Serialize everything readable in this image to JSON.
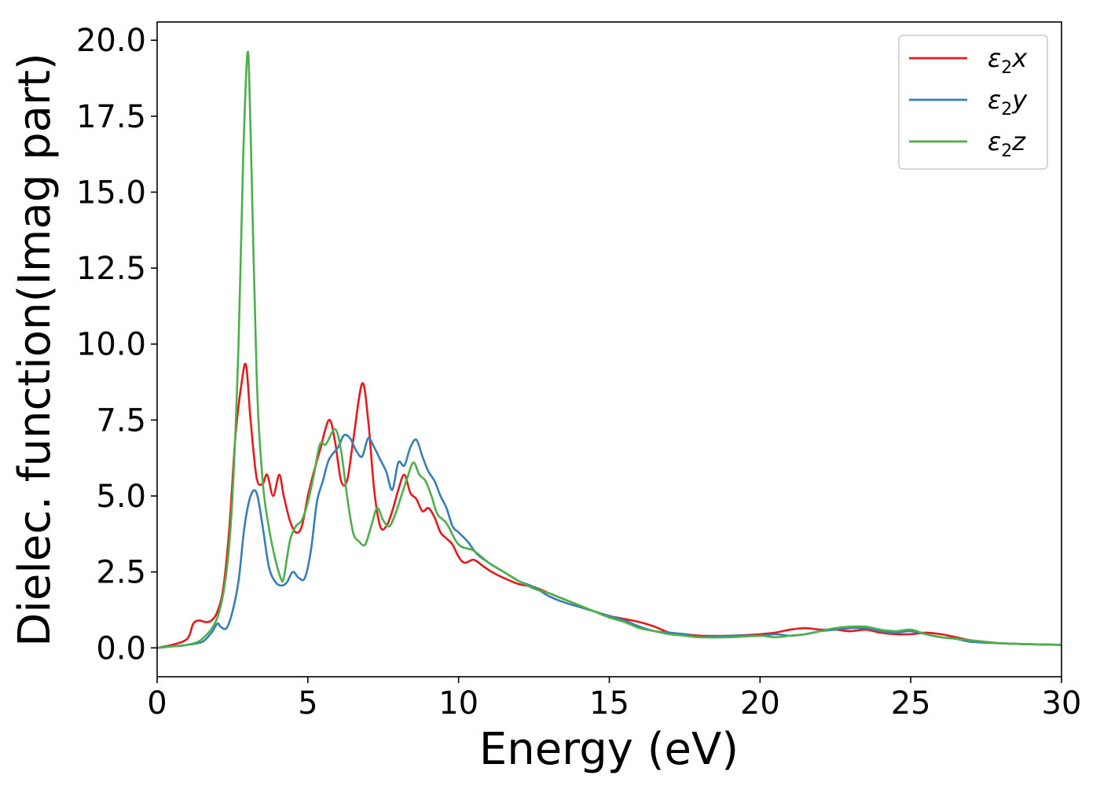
{
  "chart_data": {
    "type": "line",
    "xlabel": "Energy (eV)",
    "ylabel": "Dielec. function(Imag part)",
    "xlim": [
      0,
      30
    ],
    "ylim": [
      -0.95,
      20.6
    ],
    "xticks": [
      0,
      5,
      10,
      15,
      20,
      25,
      30
    ],
    "xtick_labels": [
      "0",
      "5",
      "10",
      "15",
      "20",
      "25",
      "30"
    ],
    "yticks": [
      0,
      2.5,
      5,
      7.5,
      10,
      12.5,
      15,
      17.5,
      20
    ],
    "ytick_labels": [
      "0.0",
      "2.5",
      "5.0",
      "7.5",
      "10.0",
      "12.5",
      "15.0",
      "17.5",
      "20.0"
    ],
    "grid": false,
    "legend_position": "top-right",
    "series": [
      {
        "name": "ε2x",
        "label_base": "ε",
        "label_sub": "2",
        "label_suffix": "x",
        "color": "#e41a1c",
        "x": [
          0,
          0.5,
          1.0,
          1.2,
          1.4,
          1.6,
          1.8,
          2.0,
          2.2,
          2.4,
          2.6,
          2.8,
          2.95,
          3.1,
          3.3,
          3.5,
          3.65,
          3.85,
          4.05,
          4.2,
          4.4,
          4.6,
          4.8,
          5.0,
          5.2,
          5.4,
          5.7,
          5.9,
          6.1,
          6.3,
          6.5,
          6.8,
          7.0,
          7.2,
          7.4,
          7.6,
          7.8,
          8.0,
          8.2,
          8.4,
          8.6,
          8.8,
          9.0,
          9.2,
          9.4,
          9.6,
          9.8,
          10.0,
          10.2,
          10.5,
          10.8,
          11.1,
          11.5,
          12.0,
          12.5,
          13.0,
          13.5,
          14.0,
          14.5,
          15.0,
          15.5,
          16.0,
          16.5,
          17.0,
          17.5,
          18.0,
          19.0,
          20.0,
          20.5,
          21.0,
          21.5,
          22.0,
          22.5,
          23.0,
          23.5,
          24.0,
          24.5,
          25.0,
          25.5,
          26.0,
          26.5,
          27.0,
          28.0,
          29.0,
          30.0
        ],
        "y": [
          0,
          0.1,
          0.3,
          0.8,
          0.9,
          0.85,
          0.9,
          1.2,
          2.0,
          4.0,
          7.0,
          8.7,
          9.3,
          7.5,
          5.6,
          5.4,
          5.7,
          5.0,
          5.7,
          5.0,
          4.2,
          3.8,
          4.0,
          5.0,
          5.8,
          6.5,
          7.5,
          6.8,
          5.5,
          5.5,
          6.8,
          8.7,
          7.5,
          5.2,
          4.0,
          4.0,
          4.5,
          5.2,
          5.7,
          5.1,
          4.9,
          4.5,
          4.6,
          4.3,
          3.8,
          3.6,
          3.4,
          3.0,
          2.8,
          2.9,
          2.7,
          2.5,
          2.3,
          2.1,
          2.0,
          1.8,
          1.6,
          1.4,
          1.2,
          1.05,
          0.95,
          0.85,
          0.7,
          0.5,
          0.45,
          0.4,
          0.4,
          0.45,
          0.5,
          0.6,
          0.65,
          0.6,
          0.6,
          0.55,
          0.6,
          0.5,
          0.45,
          0.45,
          0.5,
          0.45,
          0.35,
          0.25,
          0.15,
          0.12,
          0.1
        ]
      },
      {
        "name": "ε2y",
        "label_base": "ε",
        "label_sub": "2",
        "label_suffix": "y",
        "color": "#377eb8",
        "x": [
          0,
          0.5,
          1.0,
          1.5,
          1.8,
          2.0,
          2.1,
          2.3,
          2.5,
          2.7,
          2.9,
          3.1,
          3.3,
          3.5,
          3.7,
          3.9,
          4.1,
          4.3,
          4.5,
          4.7,
          4.9,
          5.1,
          5.3,
          5.5,
          5.7,
          6.0,
          6.2,
          6.4,
          6.6,
          6.8,
          7.0,
          7.2,
          7.4,
          7.6,
          7.8,
          8.0,
          8.2,
          8.4,
          8.6,
          8.8,
          9.0,
          9.2,
          9.4,
          9.6,
          9.8,
          10.0,
          10.3,
          10.6,
          11.0,
          11.5,
          12.0,
          12.5,
          13.0,
          13.5,
          14.0,
          14.5,
          15.0,
          15.5,
          16.0,
          16.5,
          17.0,
          17.5,
          18.0,
          19.0,
          20.0,
          20.5,
          21.0,
          21.5,
          22.0,
          22.5,
          23.0,
          23.5,
          24.0,
          24.5,
          25.0,
          25.5,
          26.0,
          26.5,
          27.0,
          28.0,
          29.0,
          30.0
        ],
        "y": [
          0,
          0.05,
          0.1,
          0.2,
          0.5,
          0.8,
          0.7,
          0.65,
          1.2,
          2.2,
          4.0,
          5.0,
          5.1,
          4.0,
          2.7,
          2.2,
          2.05,
          2.15,
          2.5,
          2.3,
          2.3,
          3.2,
          4.8,
          5.5,
          6.2,
          6.6,
          7.0,
          6.9,
          6.5,
          6.3,
          6.9,
          6.6,
          6.2,
          5.8,
          5.2,
          6.1,
          6.0,
          6.6,
          6.85,
          6.3,
          5.8,
          5.5,
          5.0,
          4.6,
          4.0,
          3.8,
          3.5,
          3.1,
          2.8,
          2.5,
          2.2,
          2.0,
          1.7,
          1.5,
          1.35,
          1.2,
          1.05,
          0.9,
          0.7,
          0.55,
          0.5,
          0.45,
          0.35,
          0.4,
          0.4,
          0.45,
          0.4,
          0.45,
          0.55,
          0.6,
          0.65,
          0.65,
          0.55,
          0.5,
          0.55,
          0.45,
          0.35,
          0.3,
          0.2,
          0.15,
          0.12,
          0.1
        ]
      },
      {
        "name": "ε2z",
        "label_base": "ε",
        "label_sub": "2",
        "label_suffix": "z",
        "color": "#4daf4a",
        "x": [
          0,
          0.5,
          1.0,
          1.5,
          2.0,
          2.3,
          2.5,
          2.7,
          2.85,
          3.0,
          3.1,
          3.3,
          3.5,
          3.7,
          3.9,
          4.1,
          4.2,
          4.4,
          4.6,
          4.8,
          5.0,
          5.2,
          5.4,
          5.6,
          5.9,
          6.1,
          6.3,
          6.5,
          6.7,
          6.9,
          7.1,
          7.3,
          7.5,
          7.7,
          7.9,
          8.1,
          8.3,
          8.5,
          8.7,
          8.9,
          9.1,
          9.3,
          9.6,
          10.0,
          10.5,
          11.0,
          11.5,
          12.0,
          12.5,
          13.0,
          13.5,
          14.0,
          14.5,
          15.0,
          15.5,
          16.0,
          16.5,
          17.0,
          17.5,
          18.0,
          19.0,
          20.0,
          20.5,
          21.0,
          21.5,
          22.0,
          22.5,
          23.0,
          23.5,
          24.0,
          24.5,
          25.0,
          25.5,
          26.0,
          26.5,
          27.0,
          28.0,
          29.0,
          30.0
        ],
        "y": [
          0,
          0.05,
          0.1,
          0.3,
          1.0,
          2.5,
          5.0,
          10.0,
          16.0,
          19.6,
          17.0,
          9.0,
          5.5,
          4.0,
          3.0,
          2.3,
          2.3,
          3.5,
          4.0,
          4.2,
          4.8,
          5.7,
          6.7,
          6.7,
          7.2,
          6.5,
          5.0,
          3.8,
          3.5,
          3.4,
          4.0,
          4.6,
          4.2,
          4.0,
          4.4,
          5.0,
          5.6,
          6.1,
          5.7,
          5.5,
          5.0,
          4.4,
          4.1,
          3.4,
          3.2,
          2.8,
          2.5,
          2.2,
          1.95,
          1.8,
          1.6,
          1.4,
          1.2,
          1.0,
          0.85,
          0.65,
          0.55,
          0.45,
          0.4,
          0.35,
          0.35,
          0.4,
          0.35,
          0.4,
          0.45,
          0.55,
          0.65,
          0.7,
          0.7,
          0.6,
          0.55,
          0.6,
          0.45,
          0.35,
          0.3,
          0.25,
          0.15,
          0.12,
          0.1
        ]
      }
    ]
  }
}
